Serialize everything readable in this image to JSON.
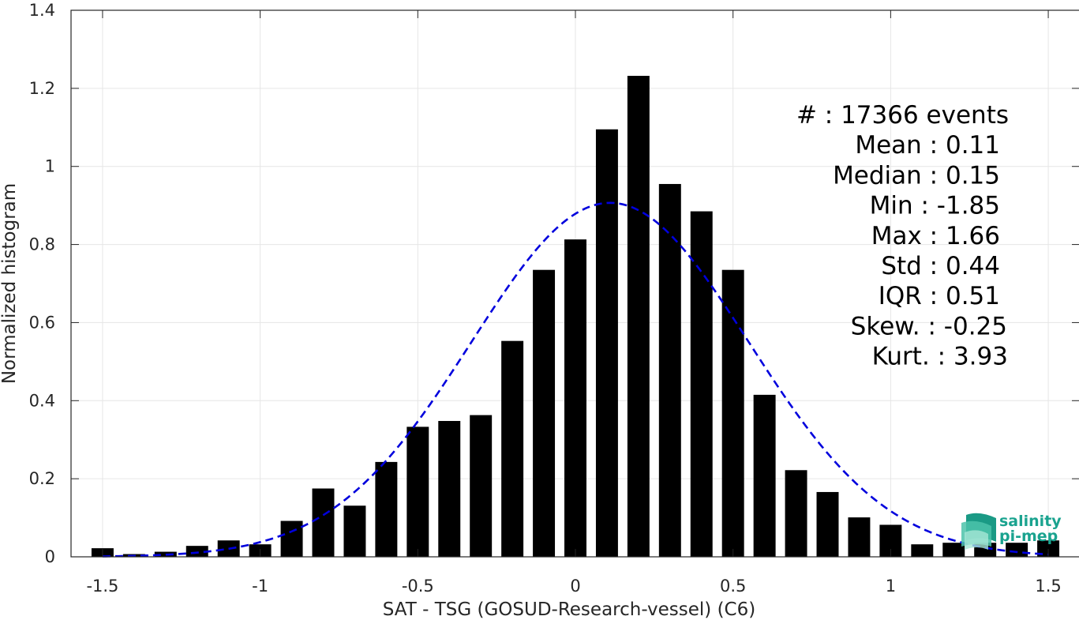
{
  "chart_data": {
    "type": "bar",
    "title": "",
    "xlabel": "SAT - TSG (GOSUD-Research-vessel) (C6)",
    "ylabel": "Normalized histogram",
    "xlim": [
      -1.6,
      1.6
    ],
    "ylim": [
      0,
      1.4
    ],
    "grid": true,
    "bar_width": 0.07,
    "xticks": [
      -1.5,
      -1,
      -0.5,
      0,
      0.5,
      1,
      1.5
    ],
    "xtick_labels": [
      "-1.5",
      "-1",
      "-0.5",
      "0",
      "0.5",
      "1",
      "1.5"
    ],
    "yticks": [
      0,
      0.2,
      0.4,
      0.6,
      0.8,
      1,
      1.2,
      1.4
    ],
    "ytick_labels": [
      "0",
      "0.2",
      "0.4",
      "0.6",
      "0.8",
      "1",
      "1.2",
      "1.4"
    ],
    "bars": {
      "x": [
        -1.5,
        -1.4,
        -1.3,
        -1.2,
        -1.1,
        -1.0,
        -0.9,
        -0.8,
        -0.7,
        -0.6,
        -0.5,
        -0.4,
        -0.3,
        -0.2,
        -0.1,
        0.0,
        0.1,
        0.2,
        0.3,
        0.4,
        0.5,
        0.6,
        0.7,
        0.8,
        0.9,
        1.0,
        1.1,
        1.2,
        1.3,
        1.4,
        1.5
      ],
      "values": [
        0.022,
        0.007,
        0.013,
        0.028,
        0.042,
        0.032,
        0.092,
        0.175,
        0.131,
        0.243,
        0.333,
        0.348,
        0.363,
        0.553,
        0.735,
        0.813,
        1.095,
        1.232,
        0.955,
        0.885,
        0.735,
        0.415,
        0.222,
        0.166,
        0.101,
        0.082,
        0.032,
        0.036,
        0.036,
        0.036,
        0.042
      ],
      "color": "#000000"
    },
    "fit": {
      "type": "gaussian",
      "mean": 0.11,
      "std": 0.44,
      "style": "dashed",
      "color": "#0000dd"
    },
    "annotations": [
      {
        "text": "#  : 17366 events",
        "align": "end"
      },
      {
        "text": "Mean : 0.11",
        "align": "end"
      },
      {
        "text": "Median : 0.15",
        "align": "end"
      },
      {
        "text": "Min : -1.85",
        "align": "end"
      },
      {
        "text": "Max : 1.66",
        "align": "end"
      },
      {
        "text": "Std : 0.44",
        "align": "end"
      },
      {
        "text": "IQR : 0.51",
        "align": "end"
      },
      {
        "text": "Skew. : -0.25",
        "align": "end"
      },
      {
        "text": "Kurt. : 3.93",
        "align": "end"
      }
    ]
  },
  "logo": {
    "line1": "salinity",
    "line2": "pi-mep",
    "icon": "salinity-wave-logo-icon",
    "color": "#1aa38f"
  }
}
